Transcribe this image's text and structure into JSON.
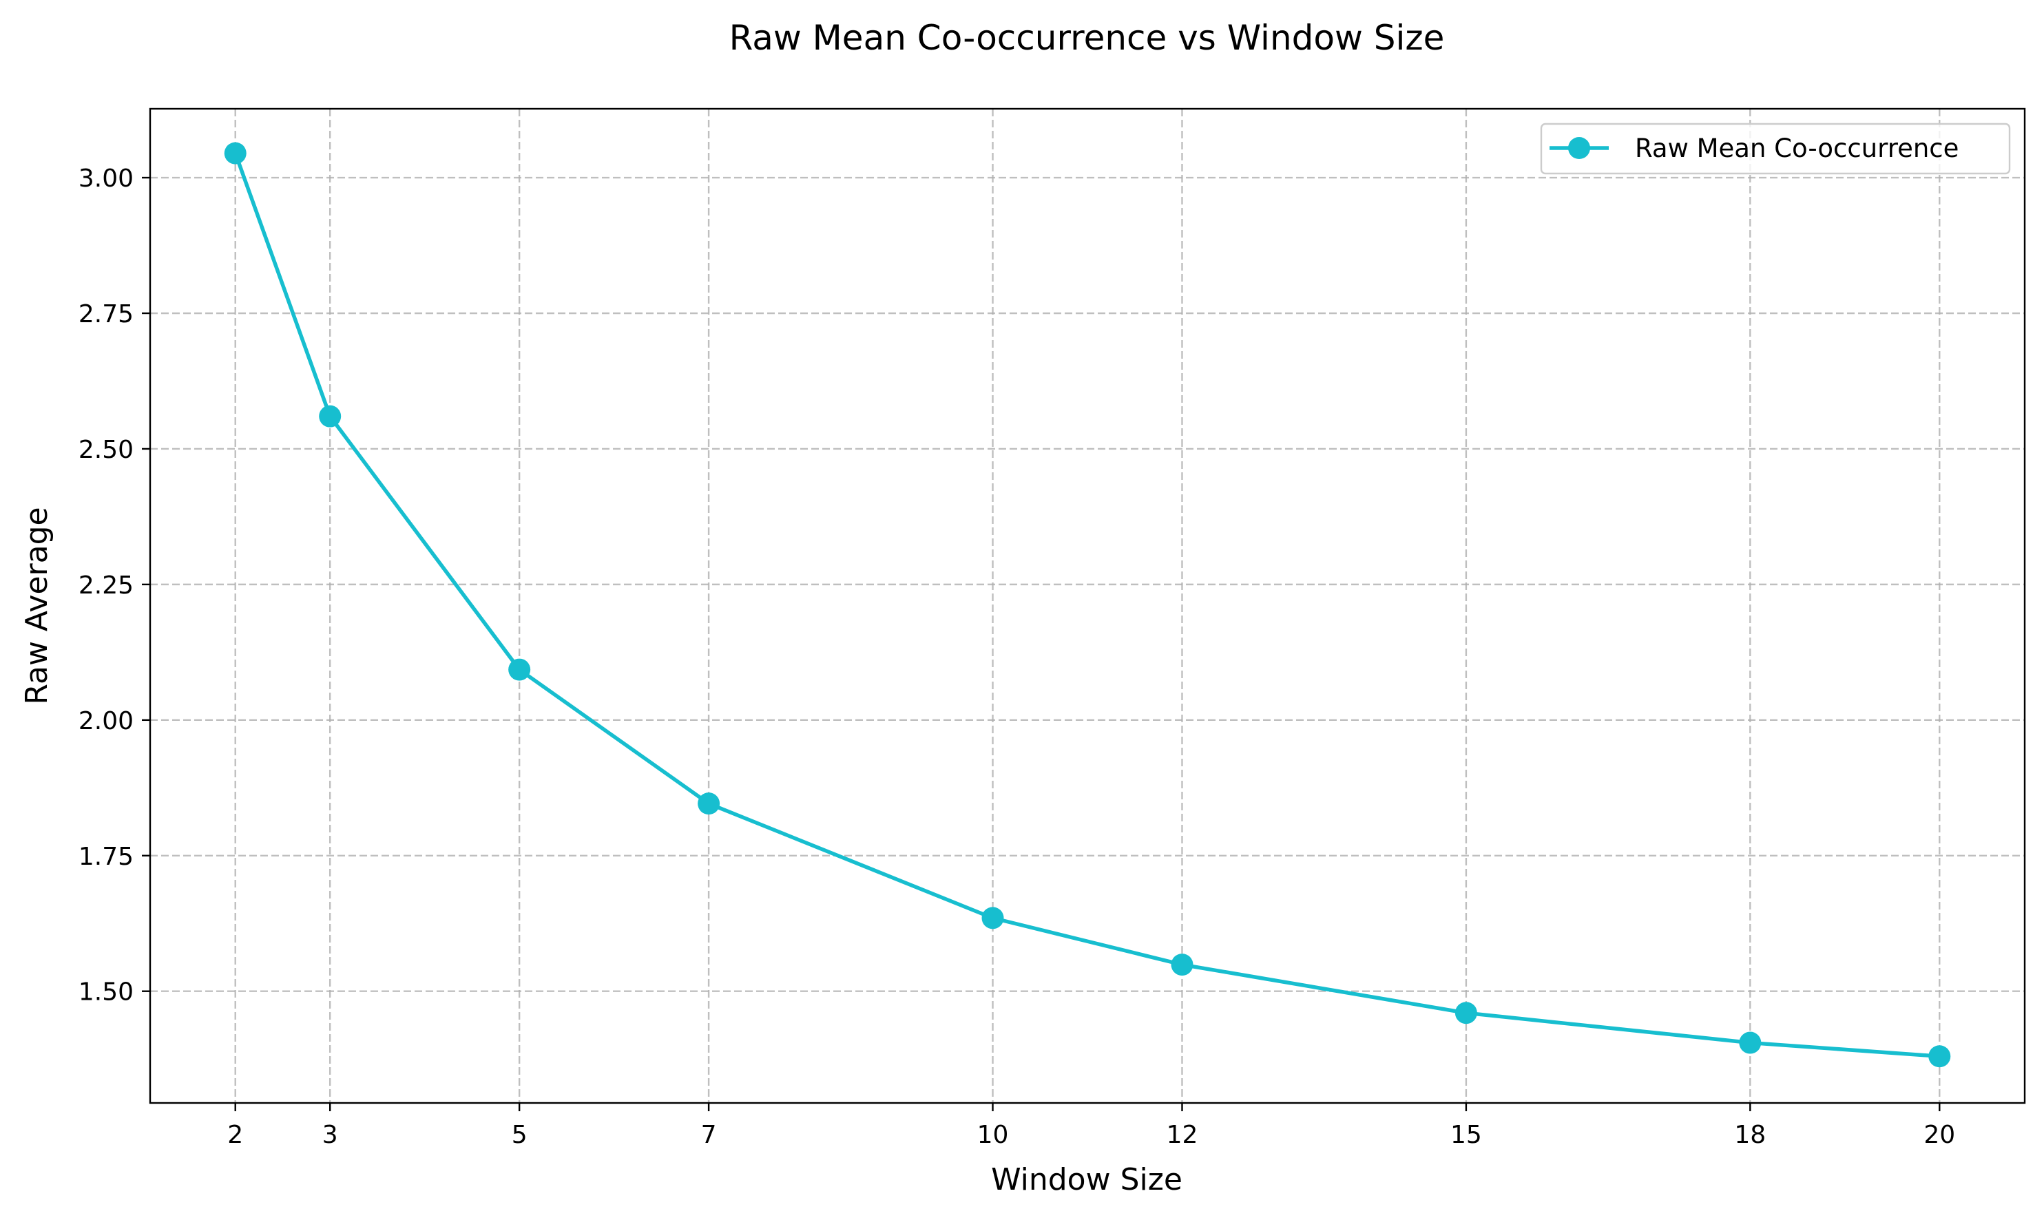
{
  "chart_data": {
    "type": "line",
    "title": "Raw Mean Co-occurrence vs Window Size",
    "xlabel": "Window Size",
    "ylabel": "Raw Average",
    "x": [
      2,
      3,
      5,
      7,
      10,
      12,
      15,
      18,
      20
    ],
    "x_tick_labels": [
      "2",
      "3",
      "5",
      "7",
      "10",
      "12",
      "15",
      "18",
      "20"
    ],
    "y_ticks": [
      1.5,
      1.75,
      2.0,
      2.25,
      2.5,
      2.75,
      3.0
    ],
    "y_tick_labels": [
      "1.50",
      "1.75",
      "2.00",
      "2.25",
      "2.50",
      "2.75",
      "3.00"
    ],
    "xlim": [
      1.1,
      20.9
    ],
    "ylim": [
      1.294,
      3.127
    ],
    "grid": true,
    "legend_position": "top-right",
    "series": [
      {
        "name": "Raw Mean Co-occurrence",
        "color": "#17becf",
        "marker": "circle",
        "values": [
          3.045,
          2.56,
          2.093,
          1.846,
          1.635,
          1.549,
          1.46,
          1.405,
          1.38
        ]
      }
    ]
  }
}
